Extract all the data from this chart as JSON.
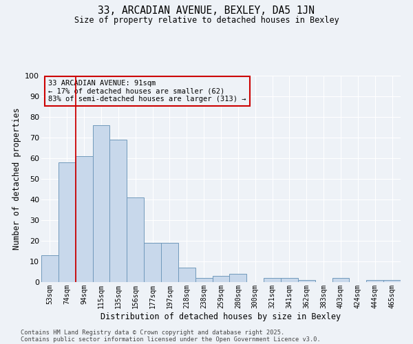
{
  "title1": "33, ARCADIAN AVENUE, BEXLEY, DA5 1JN",
  "title2": "Size of property relative to detached houses in Bexley",
  "xlabel": "Distribution of detached houses by size in Bexley",
  "ylabel": "Number of detached properties",
  "categories": [
    "53sqm",
    "74sqm",
    "94sqm",
    "115sqm",
    "135sqm",
    "156sqm",
    "177sqm",
    "197sqm",
    "218sqm",
    "238sqm",
    "259sqm",
    "280sqm",
    "300sqm",
    "321sqm",
    "341sqm",
    "362sqm",
    "383sqm",
    "403sqm",
    "424sqm",
    "444sqm",
    "465sqm"
  ],
  "values": [
    13,
    58,
    61,
    76,
    69,
    41,
    19,
    19,
    7,
    2,
    3,
    4,
    0,
    2,
    2,
    1,
    0,
    2,
    0,
    1,
    1
  ],
  "bar_color": "#c8d8eb",
  "bar_edge_color": "#7099bb",
  "vline_color": "#cc0000",
  "vline_x": 1.5,
  "annotation_title": "33 ARCADIAN AVENUE: 91sqm",
  "annotation_line1": "← 17% of detached houses are smaller (62)",
  "annotation_line2": "83% of semi-detached houses are larger (313) →",
  "annotation_box_edgecolor": "#cc0000",
  "footnote1": "Contains HM Land Registry data © Crown copyright and database right 2025.",
  "footnote2": "Contains public sector information licensed under the Open Government Licence v3.0.",
  "ylim": [
    0,
    100
  ],
  "yticks": [
    0,
    10,
    20,
    30,
    40,
    50,
    60,
    70,
    80,
    90,
    100
  ],
  "background_color": "#eef2f7",
  "grid_color": "#ffffff"
}
